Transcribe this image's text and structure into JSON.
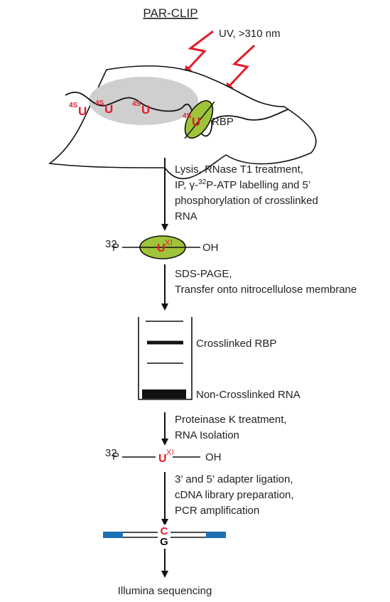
{
  "title": "PAR-CLIP",
  "uv_label": "UV, >310 nm",
  "s4u": {
    "sup": "4S",
    "base": "U"
  },
  "rbp_label": "RBP",
  "step1_lines": [
    "Lysis, RNase T1 treatment,",
    "IP, γ-",
    "32",
    "P-ATP labelling and 5’",
    "phosphorylation of crosslinked",
    "RNA"
  ],
  "p32_sup": "32",
  "p32_base": "P",
  "oh_label": "OH",
  "uxl_base": "U",
  "uxl_sup": "X",
  "uxl_sup2": "l",
  "step2_lines": [
    "SDS-PAGE,",
    "Transfer onto nitrocellulose membrane"
  ],
  "gel_label_crosslinked": "Crosslinked RBP",
  "gel_label_noncrosslinked": "Non-Crosslinked RNA",
  "step3_lines": [
    "Proteinase K treatment,",
    "RNA Isolation"
  ],
  "step4_lines": [
    "3’ and 5’ adapter ligation,",
    "cDNA library preparation,",
    "PCR amplification"
  ],
  "duplex_top": "C",
  "duplex_bottom": "G",
  "final_label": "Illumina sequencing",
  "colors": {
    "red": "#e11d2a",
    "rbp_green": "#9fc43a",
    "nucleus_gray": "#cfcfcf",
    "adapter_blue": "#1f6fb5",
    "ink": "#111111"
  }
}
